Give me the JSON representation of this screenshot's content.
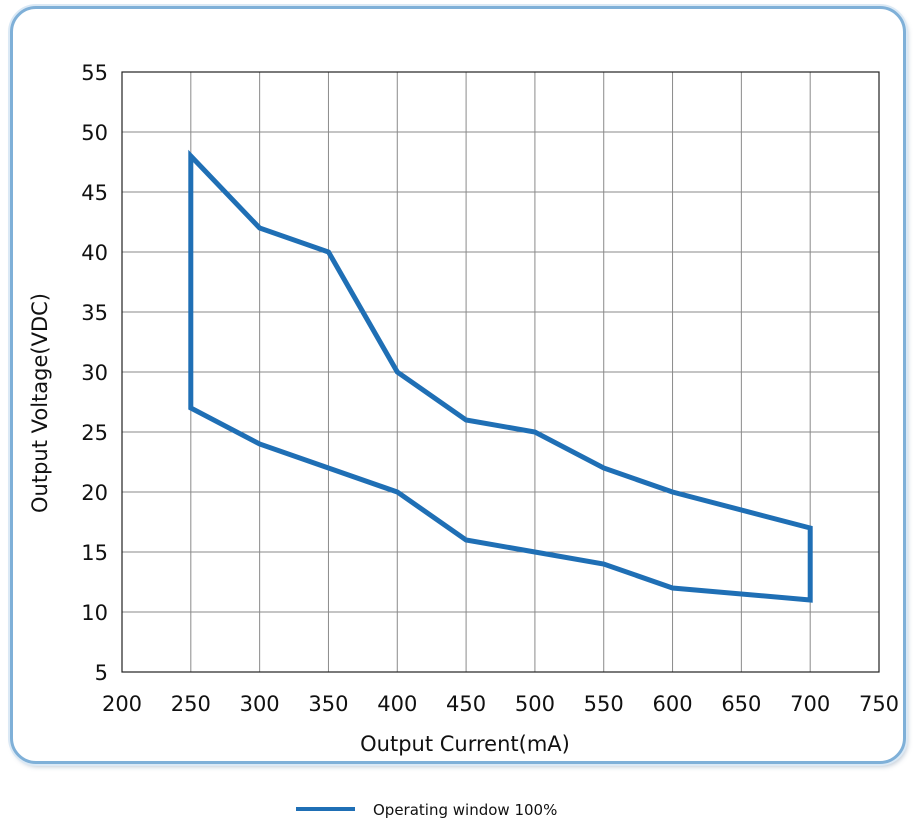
{
  "chart_data": {
    "type": "line",
    "xlabel": "Output Current(mA)",
    "ylabel": "Output Voltage(VDC)",
    "xlim": [
      200,
      750
    ],
    "ylim": [
      5,
      55
    ],
    "xticks": [
      200,
      250,
      300,
      350,
      400,
      450,
      500,
      550,
      600,
      650,
      700,
      750
    ],
    "yticks": [
      5,
      10,
      15,
      20,
      25,
      30,
      35,
      40,
      45,
      50,
      55
    ],
    "grid": true,
    "legend_position": "bottom-center",
    "series": [
      {
        "name": "Operating window 100%",
        "color": "#1f6fb5",
        "closed": true,
        "x": [
          250,
          300,
          350,
          400,
          450,
          500,
          550,
          600,
          700,
          700,
          600,
          550,
          500,
          450,
          400,
          300,
          250,
          250
        ],
        "y": [
          48,
          42,
          40,
          30,
          26,
          25,
          22,
          20,
          17,
          11,
          12,
          14,
          15,
          16,
          20,
          24,
          27,
          48
        ]
      }
    ]
  }
}
